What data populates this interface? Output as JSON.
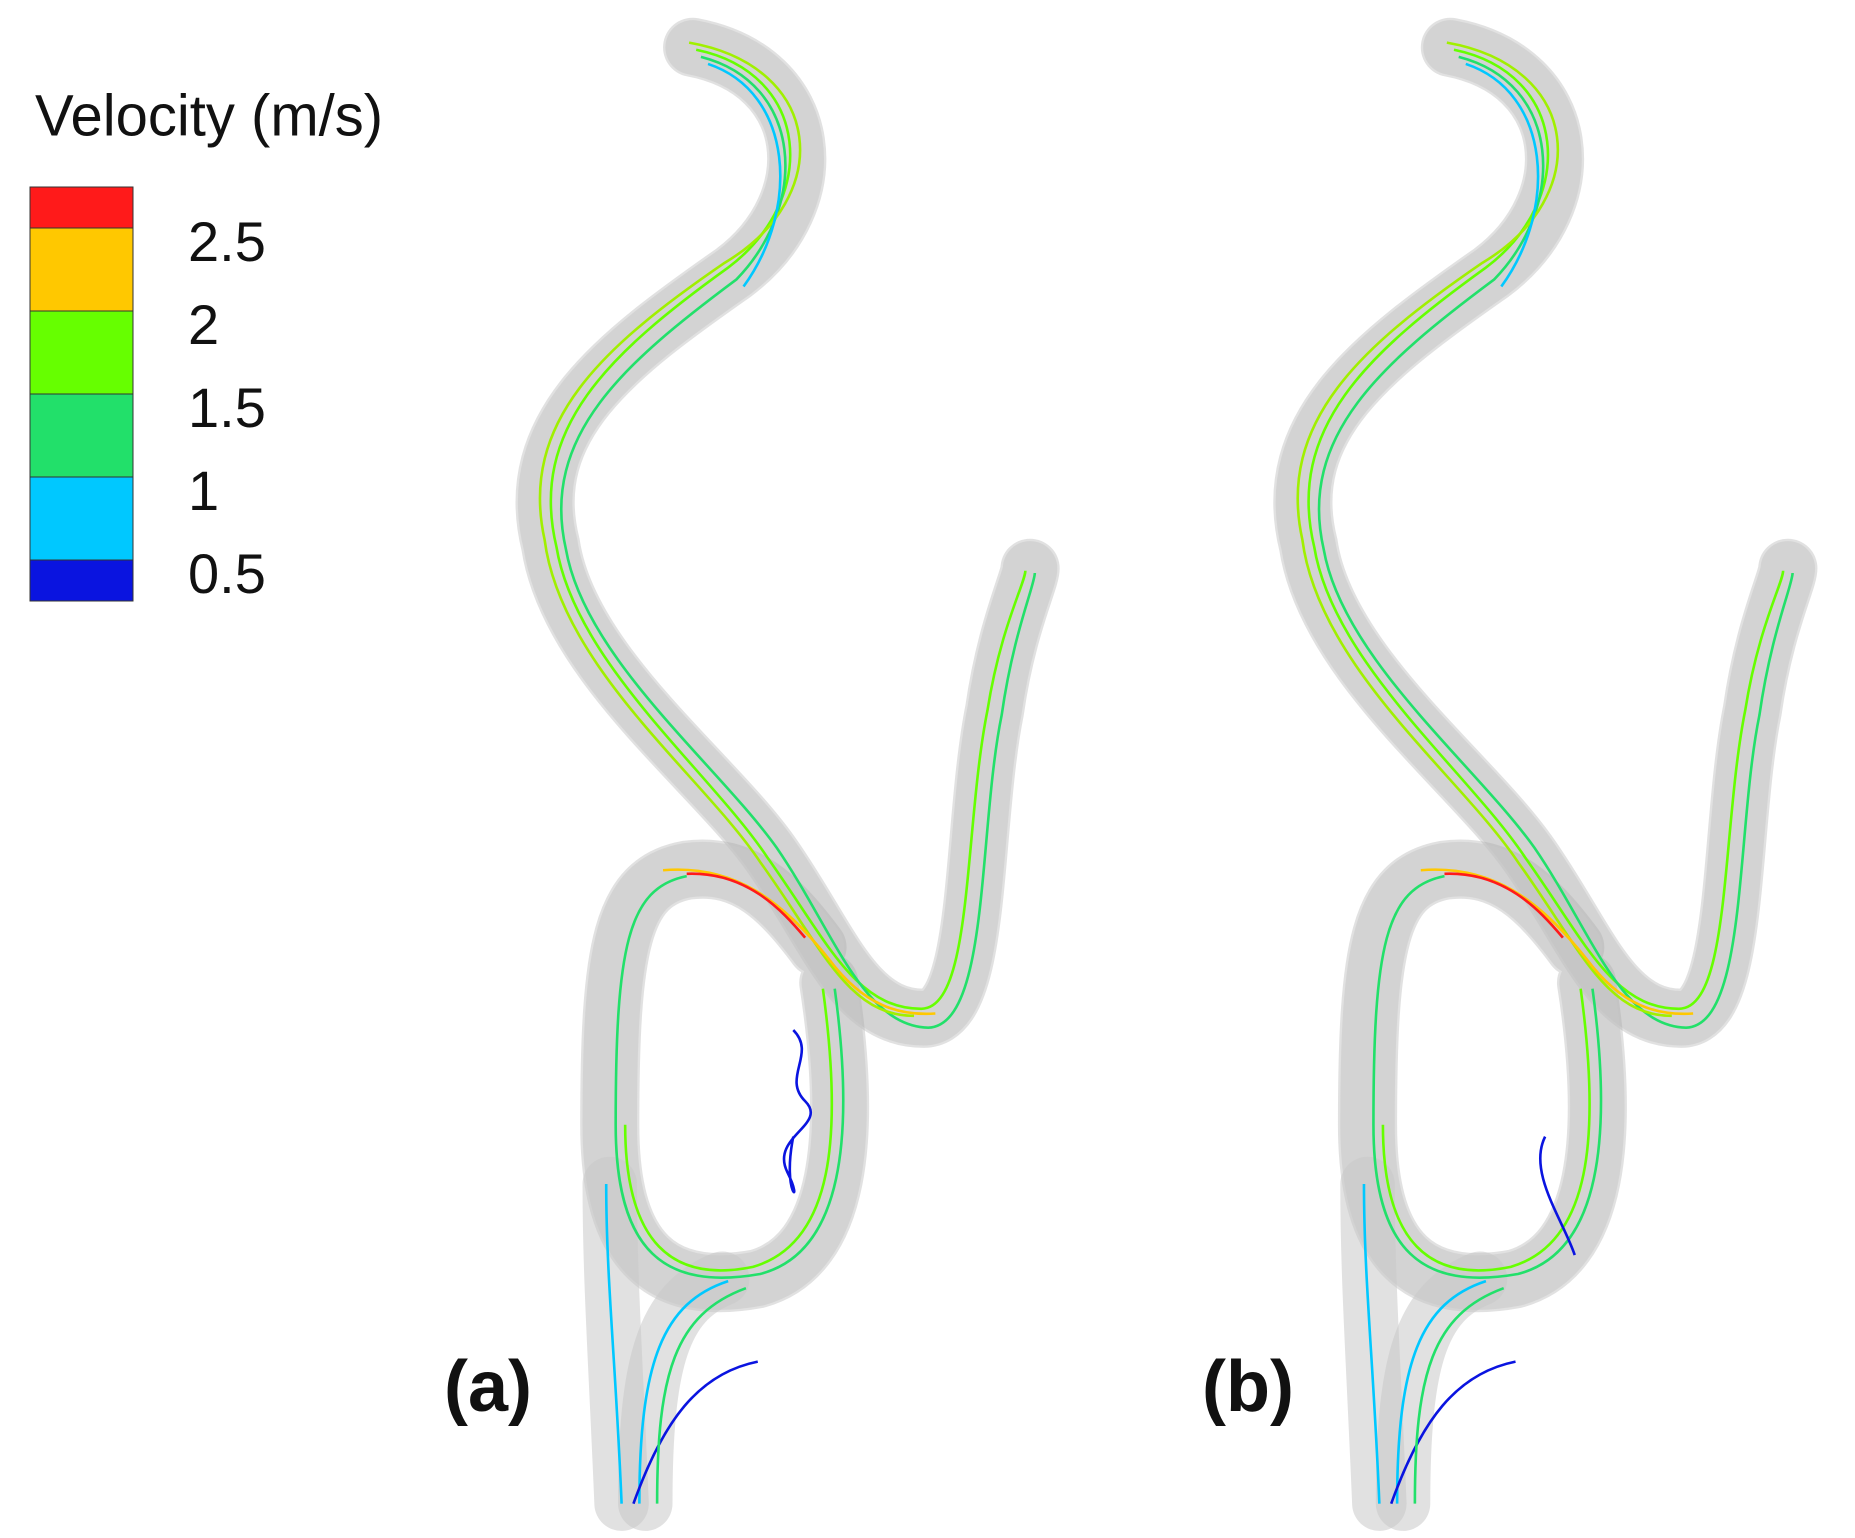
{
  "legend": {
    "title": "Velocity (m/s)",
    "labels": [
      2.5,
      2,
      1.5,
      1,
      0.5
    ],
    "colors": [
      "#ff1a1a",
      "#ffc800",
      "#66ff00",
      "#22e06a",
      "#00c8ff",
      "#0a14e0"
    ]
  },
  "panels": [
    {
      "label": "(a)"
    },
    {
      "label": "(b)"
    }
  ]
}
